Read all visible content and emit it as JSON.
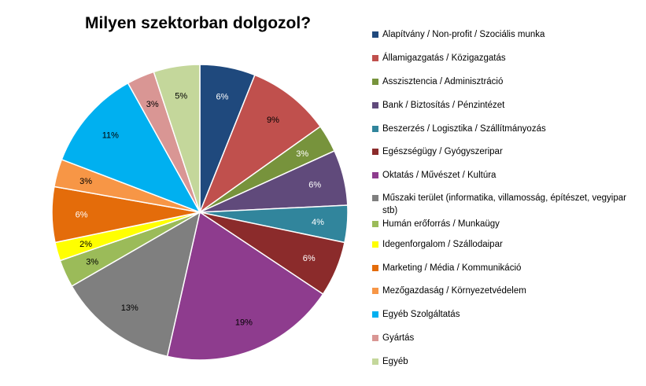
{
  "chart_data": {
    "type": "pie",
    "title": "Milyen szektorban dolgozol?",
    "legend_position": "right",
    "slices": [
      {
        "label": "Alapítvány / Non-profit / Szociális munka",
        "value": 6,
        "display": "6%",
        "color": "#1F497D"
      },
      {
        "label": "Államigazgatás / Közigazgatás",
        "value": 9,
        "display": "9%",
        "color": "#C0504D"
      },
      {
        "label": "Asszisztencia / Adminisztráció",
        "value": 3,
        "display": "3%",
        "color": "#77933C"
      },
      {
        "label": "Bank / Biztosítás / Pénzintézet",
        "value": 6,
        "display": "6%",
        "color": "#604A7B"
      },
      {
        "label": "Beszerzés / Logisztika / Szállítmányozás",
        "value": 4,
        "display": "4%",
        "color": "#31859C"
      },
      {
        "label": "Egészségügy / Gyógyszeripar",
        "value": 6,
        "display": "6%",
        "color": "#8B2B2B"
      },
      {
        "label": "Oktatás / Művészet /  Kultúra",
        "value": 19,
        "display": "19%",
        "color": "#8E3C8E"
      },
      {
        "label": "Műszaki terület (informatika, villamosság, építészet, vegyipar stb)",
        "value": 13,
        "display": "13%",
        "color": "#7F7F7F"
      },
      {
        "label": "Humán erőforrás / Munkaügy",
        "value": 3,
        "display": "3%",
        "color": "#9BBB59"
      },
      {
        "label": "Idegenforgalom / Szállodaipar",
        "value": 2,
        "display": "2%",
        "color": "#FFFF00"
      },
      {
        "label": "Marketing / Média / Kommunikáció",
        "value": 6,
        "display": "6%",
        "color": "#E46C0A"
      },
      {
        "label": "Mezőgazdaság / Környezetvédelem",
        "value": 3,
        "display": "3%",
        "color": "#F79646"
      },
      {
        "label": "Egyéb Szolgáltatás",
        "value": 11,
        "display": "11%",
        "color": "#00B0F0"
      },
      {
        "label": "Gyártás",
        "value": 3,
        "display": "3%",
        "color": "#D99694"
      },
      {
        "label": "Egyéb",
        "value": 5,
        "display": "5%",
        "color": "#C4D79B"
      }
    ]
  }
}
